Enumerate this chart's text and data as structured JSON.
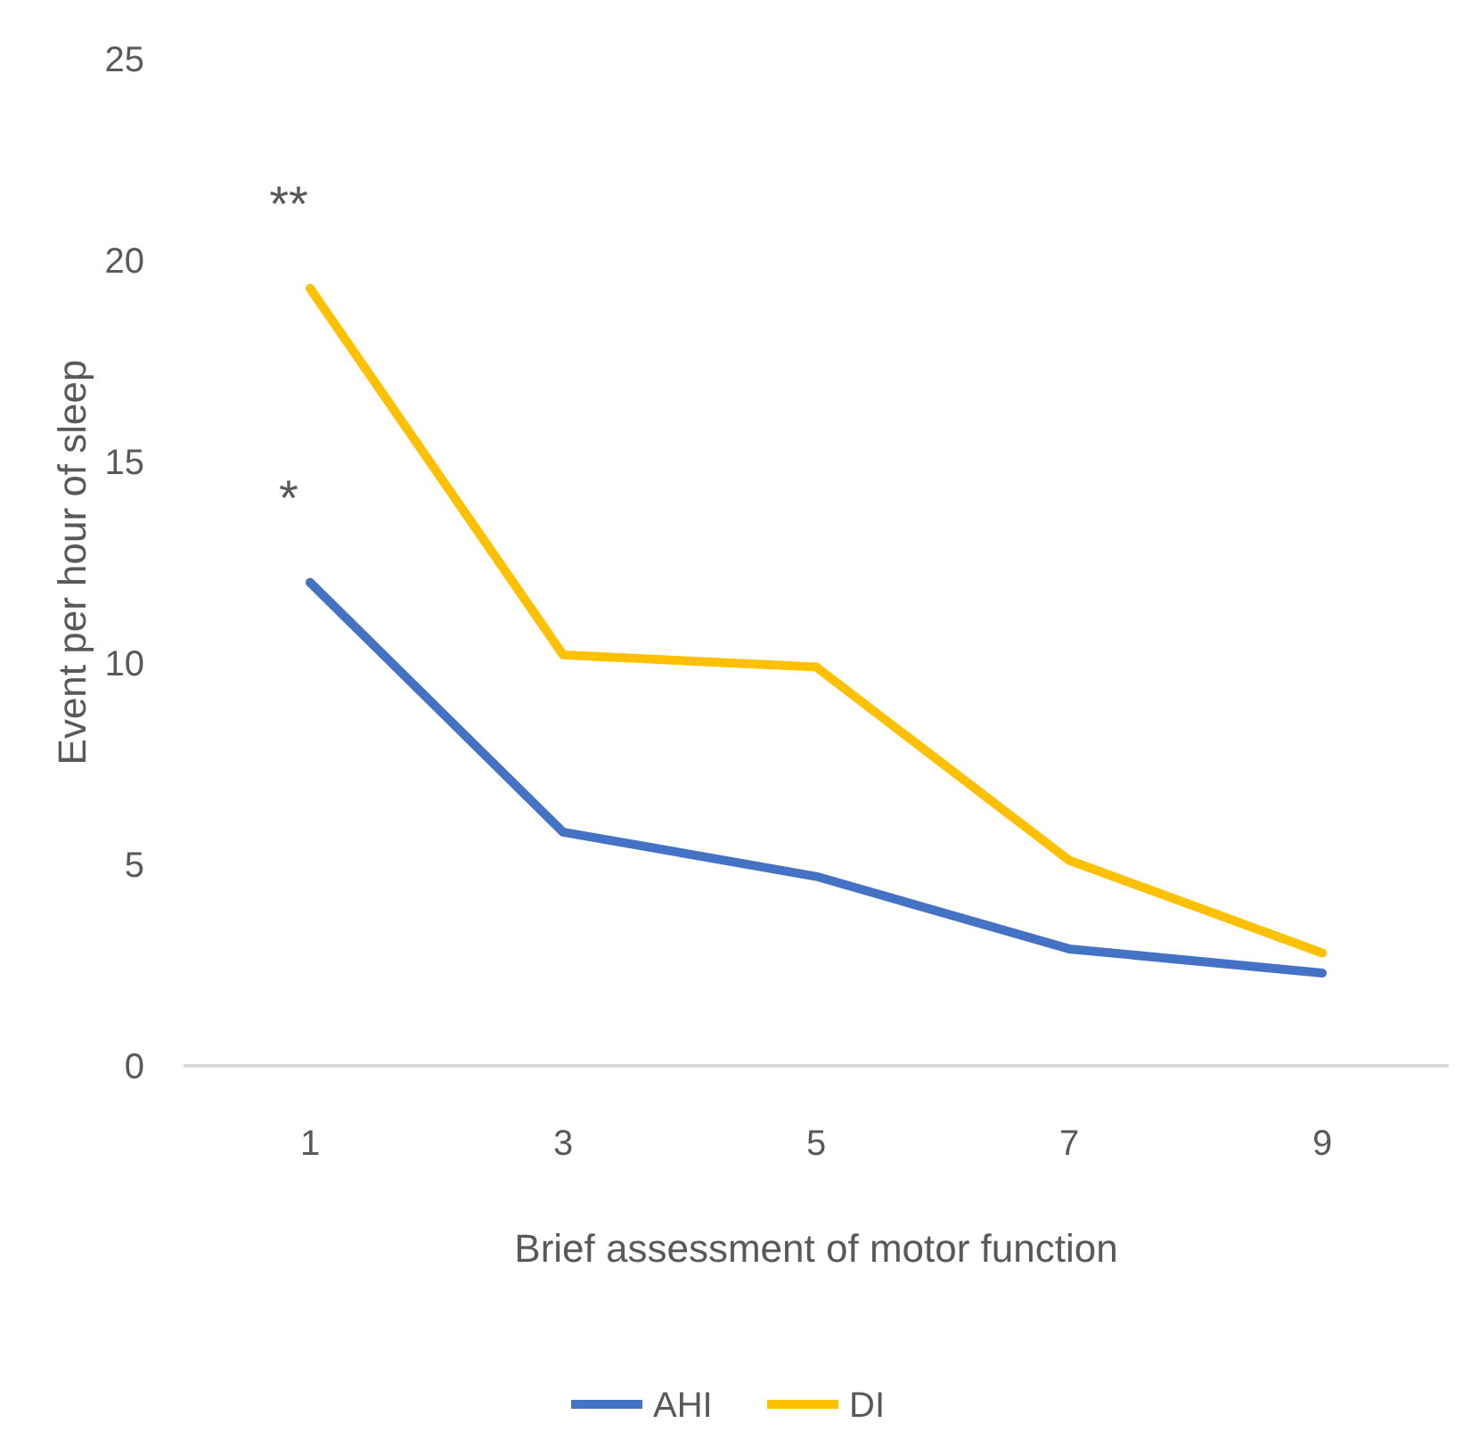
{
  "chart_data": {
    "type": "line",
    "xlabel": "Brief assessment of motor function",
    "ylabel": "Event per hour of sleep",
    "categories": [
      "1",
      "3",
      "5",
      "7",
      "9"
    ],
    "ylim": [
      0,
      25
    ],
    "yticks": [
      0,
      5,
      10,
      15,
      20,
      25
    ],
    "grid": false,
    "legend": "bottom",
    "marker": "none",
    "line_style": "solid",
    "series": [
      {
        "name": "AHI",
        "color": "#4472c4",
        "values": [
          12,
          5.8,
          4.7,
          2.9,
          2.3
        ]
      },
      {
        "name": "DI",
        "color": "#ffc000",
        "values": [
          19.3,
          10.2,
          9.9,
          5.1,
          2.8
        ]
      }
    ],
    "annotations": [
      {
        "text": "**",
        "x": "1",
        "y": 19.3
      },
      {
        "text": "*",
        "x": "1",
        "y": 12
      }
    ]
  }
}
